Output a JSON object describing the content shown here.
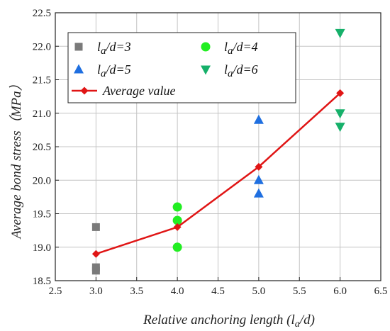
{
  "chart_data": {
    "type": "scatter",
    "xlabel": "Relative anchoring length (l",
    "xlabel_sub": "a",
    "xlabel_tail": "/d)",
    "ylabel": "Average bond stress（MPa）",
    "xlim": [
      2.5,
      6.5
    ],
    "ylim": [
      18.5,
      22.5
    ],
    "xticks": [
      "2.5",
      "3.0",
      "3.5",
      "4.0",
      "4.5",
      "5.0",
      "5.5",
      "6.0",
      "6.5"
    ],
    "yticks": [
      "18.5",
      "19.0",
      "19.5",
      "20.0",
      "20.5",
      "21.0",
      "21.5",
      "22.0",
      "22.5"
    ],
    "grid": true,
    "legend_position": "top-left",
    "series": [
      {
        "name": "l",
        "name_sub": "a",
        "name_tail": "/d=3",
        "marker": "square",
        "color": "#7a7a7a",
        "points": [
          [
            3.0,
            19.3
          ],
          [
            3.0,
            18.7
          ],
          [
            3.0,
            18.65
          ]
        ]
      },
      {
        "name": "l",
        "name_sub": "a",
        "name_tail": "/d=4",
        "marker": "circle",
        "color": "#22ee22",
        "points": [
          [
            4.0,
            19.6
          ],
          [
            4.0,
            19.4
          ],
          [
            4.0,
            19.0
          ]
        ]
      },
      {
        "name": "l",
        "name_sub": "a",
        "name_tail": "/d=5",
        "marker": "triangle-up",
        "color": "#1f6fe0",
        "points": [
          [
            5.0,
            20.9
          ],
          [
            5.0,
            20.0
          ],
          [
            5.0,
            19.8
          ]
        ]
      },
      {
        "name": "l",
        "name_sub": "a",
        "name_tail": "/d=6",
        "marker": "triangle-down",
        "color": "#16b06a",
        "points": [
          [
            6.0,
            22.2
          ],
          [
            6.0,
            21.0
          ],
          [
            6.0,
            20.8
          ]
        ]
      }
    ],
    "line_series": {
      "name": "Average value",
      "marker": "diamond",
      "color": "#e01515",
      "points": [
        [
          3.0,
          18.9
        ],
        [
          4.0,
          19.3
        ],
        [
          5.0,
          20.2
        ],
        [
          6.0,
          21.3
        ]
      ]
    }
  }
}
